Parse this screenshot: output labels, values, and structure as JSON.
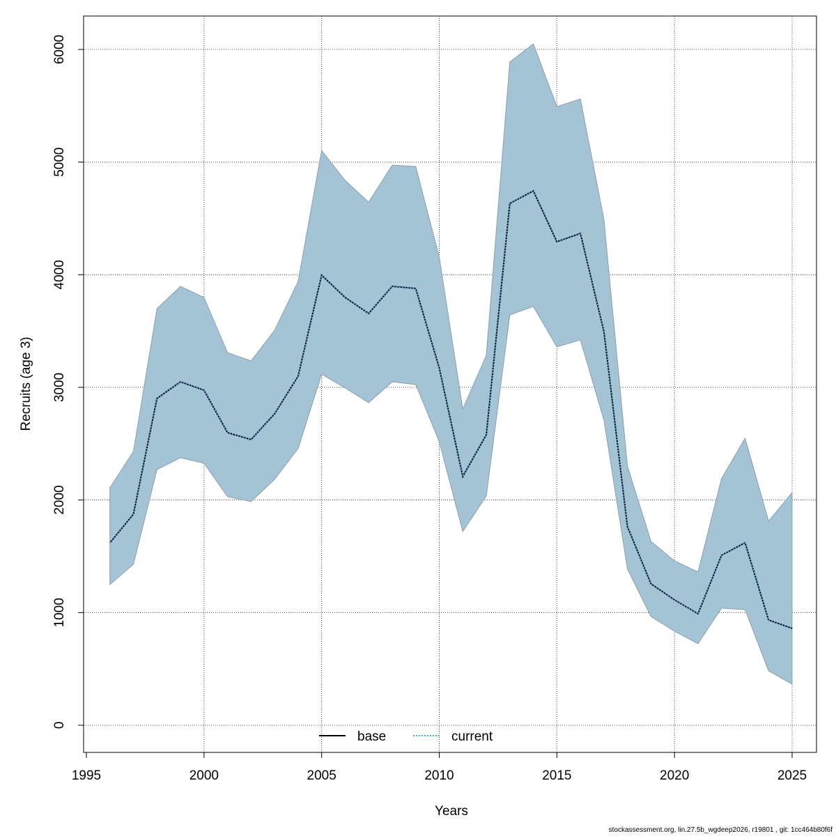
{
  "chart_data": {
    "type": "line",
    "title": "",
    "xlabel": "Years",
    "ylabel": "Recruits (age 3)",
    "xlim": [
      1995,
      2025.6
    ],
    "ylim": [
      -250,
      6300
    ],
    "grid": true,
    "x_ticks": [
      1995,
      2000,
      2005,
      2010,
      2015,
      2020,
      2025
    ],
    "y_ticks": [
      0,
      1000,
      2000,
      3000,
      4000,
      5000,
      6000
    ],
    "x": [
      1996,
      1997,
      1998,
      1999,
      2000,
      2001,
      2002,
      2003,
      2004,
      2005,
      2006,
      2007,
      2008,
      2009,
      2010,
      2011,
      2012,
      2013,
      2014,
      2015,
      2016,
      2017,
      2018,
      2019,
      2020,
      2021,
      2022,
      2023,
      2024,
      2025
    ],
    "band": {
      "color": "#a4c3d4",
      "upper": [
        2109,
        2431,
        3699,
        3897,
        3798,
        3309,
        3235,
        3507,
        3940,
        5103,
        4837,
        4645,
        4973,
        4961,
        4157,
        2808,
        3284,
        5889,
        6049,
        5493,
        5561,
        4491,
        2301,
        1633,
        1460,
        1361,
        2190,
        2548,
        1812,
        2066
      ],
      "lower": [
        1249,
        1429,
        2270,
        2375,
        2326,
        2029,
        1986,
        2183,
        2456,
        3117,
        2994,
        2864,
        3049,
        3025,
        2517,
        1720,
        2035,
        3643,
        3718,
        3359,
        3421,
        2709,
        1386,
        965,
        835,
        724,
        1039,
        1027,
        482,
        365
      ]
    },
    "series": [
      {
        "name": "base",
        "color": "#000000",
        "style": "solid",
        "values": [
          1620,
          1874,
          2901,
          3049,
          2975,
          2598,
          2536,
          2765,
          3099,
          3996,
          3798,
          3656,
          3897,
          3878,
          3173,
          2208,
          2579,
          4633,
          4744,
          4293,
          4367,
          3495,
          1763,
          1256,
          1113,
          990,
          1509,
          1620,
          934,
          860
        ]
      },
      {
        "name": "current",
        "color": "#4aa3d8",
        "style": "dotted",
        "values": [
          1620,
          1874,
          2901,
          3049,
          2975,
          2598,
          2536,
          2765,
          3099,
          3996,
          3798,
          3656,
          3897,
          3878,
          3173,
          2208,
          2579,
          4633,
          4744,
          4293,
          4367,
          3495,
          1763,
          1256,
          1113,
          990,
          1509,
          1620,
          934,
          860
        ]
      }
    ],
    "legend": {
      "position": "bottom-center",
      "entries": [
        "base",
        "current"
      ]
    }
  },
  "footer": "stockassessment.org, lin.27.5b_wgdeep2026, r19801 , git: 1cc464b80f6f"
}
